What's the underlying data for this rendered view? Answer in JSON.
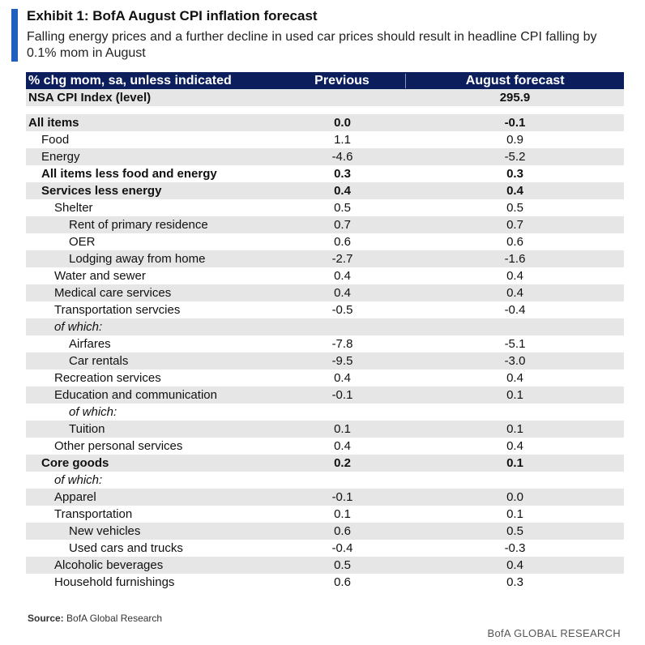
{
  "title": "Exhibit 1: BofA August CPI inflation forecast",
  "subtitle": "Falling energy prices and a further decline in used car prices should result in headline CPI falling by 0.1% mom in August",
  "table": {
    "headers": [
      "% chg mom, sa, unless indicated",
      "Previous",
      "August forecast"
    ],
    "rows": [
      {
        "label": "NSA CPI Index (level)",
        "prev": "",
        "aug": "295.9",
        "indent": 0,
        "bold": true,
        "italic": false,
        "shade": true
      },
      {
        "label": "",
        "prev": "",
        "aug": "",
        "indent": 0,
        "bold": false,
        "italic": false,
        "shade": false,
        "blank": true
      },
      {
        "label": "All items",
        "prev": "0.0",
        "aug": "-0.1",
        "indent": 0,
        "bold": true,
        "italic": false,
        "shade": true
      },
      {
        "label": "Food",
        "prev": "1.1",
        "aug": "0.9",
        "indent": 1,
        "bold": false,
        "italic": false,
        "shade": false
      },
      {
        "label": "Energy",
        "prev": "-4.6",
        "aug": "-5.2",
        "indent": 1,
        "bold": false,
        "italic": false,
        "shade": true
      },
      {
        "label": "All items less food and energy",
        "prev": "0.3",
        "aug": "0.3",
        "indent": 1,
        "bold": true,
        "italic": false,
        "shade": false
      },
      {
        "label": "Services less energy",
        "prev": "0.4",
        "aug": "0.4",
        "indent": 2,
        "bold": true,
        "italic": false,
        "shade": true
      },
      {
        "label": "Shelter",
        "prev": "0.5",
        "aug": "0.5",
        "indent": 3,
        "bold": false,
        "italic": false,
        "shade": false
      },
      {
        "label": "Rent of primary residence",
        "prev": "0.7",
        "aug": "0.7",
        "indent": 4,
        "bold": false,
        "italic": false,
        "shade": true
      },
      {
        "label": "OER",
        "prev": "0.6",
        "aug": "0.6",
        "indent": 4,
        "bold": false,
        "italic": false,
        "shade": false
      },
      {
        "label": "Lodging away from home",
        "prev": "-2.7",
        "aug": "-1.6",
        "indent": 4,
        "bold": false,
        "italic": false,
        "shade": true
      },
      {
        "label": "Water and sewer",
        "prev": "0.4",
        "aug": "0.4",
        "indent": 3,
        "bold": false,
        "italic": false,
        "shade": false
      },
      {
        "label": "Medical care services",
        "prev": "0.4",
        "aug": "0.4",
        "indent": 3,
        "bold": false,
        "italic": false,
        "shade": true
      },
      {
        "label": "Transportation servcies",
        "prev": "-0.5",
        "aug": "-0.4",
        "indent": 3,
        "bold": false,
        "italic": false,
        "shade": false
      },
      {
        "label": "of which:",
        "prev": "",
        "aug": "",
        "indent": 3,
        "bold": false,
        "italic": true,
        "shade": true
      },
      {
        "label": "Airfares",
        "prev": "-7.8",
        "aug": "-5.1",
        "indent": 4,
        "bold": false,
        "italic": false,
        "shade": false
      },
      {
        "label": "Car rentals",
        "prev": "-9.5",
        "aug": "-3.0",
        "indent": 4,
        "bold": false,
        "italic": false,
        "shade": true
      },
      {
        "label": "Recreation services",
        "prev": "0.4",
        "aug": "0.4",
        "indent": 3,
        "bold": false,
        "italic": false,
        "shade": false
      },
      {
        "label": "Education and communication",
        "prev": "-0.1",
        "aug": "0.1",
        "indent": 3,
        "bold": false,
        "italic": false,
        "shade": true
      },
      {
        "label": "of which:",
        "prev": "",
        "aug": "",
        "indent": 4,
        "bold": false,
        "italic": true,
        "shade": false
      },
      {
        "label": "Tuition",
        "prev": "0.1",
        "aug": "0.1",
        "indent": 4,
        "bold": false,
        "italic": false,
        "shade": true
      },
      {
        "label": "Other personal services",
        "prev": "0.4",
        "aug": "0.4",
        "indent": 3,
        "bold": false,
        "italic": false,
        "shade": false
      },
      {
        "label": "Core goods",
        "prev": "0.2",
        "aug": "0.1",
        "indent": 2,
        "bold": true,
        "italic": false,
        "shade": true
      },
      {
        "label": "of which:",
        "prev": "",
        "aug": "",
        "indent": 3,
        "bold": false,
        "italic": true,
        "shade": false
      },
      {
        "label": "Apparel",
        "prev": "-0.1",
        "aug": "0.0",
        "indent": 3,
        "bold": false,
        "italic": false,
        "shade": true
      },
      {
        "label": "Transportation",
        "prev": "0.1",
        "aug": "0.1",
        "indent": 3,
        "bold": false,
        "italic": false,
        "shade": false
      },
      {
        "label": "New vehicles",
        "prev": "0.6",
        "aug": "0.5",
        "indent": 4,
        "bold": false,
        "italic": false,
        "shade": true
      },
      {
        "label": "Used cars and trucks",
        "prev": "-0.4",
        "aug": "-0.3",
        "indent": 4,
        "bold": false,
        "italic": false,
        "shade": false
      },
      {
        "label": "Alcoholic beverages",
        "prev": "0.5",
        "aug": "0.4",
        "indent": 3,
        "bold": false,
        "italic": false,
        "shade": true
      },
      {
        "label": "Household furnishings",
        "prev": "0.6",
        "aug": "0.3",
        "indent": 3,
        "bold": false,
        "italic": false,
        "shade": false
      }
    ]
  },
  "source": {
    "label": "Source:",
    "text": "BofA Global Research"
  },
  "footer": "BofA GLOBAL RESEARCH",
  "colors": {
    "accent": "#1f5fbf",
    "header_bg": "#0c1f5c",
    "row_shade": "#e6e6e6"
  }
}
